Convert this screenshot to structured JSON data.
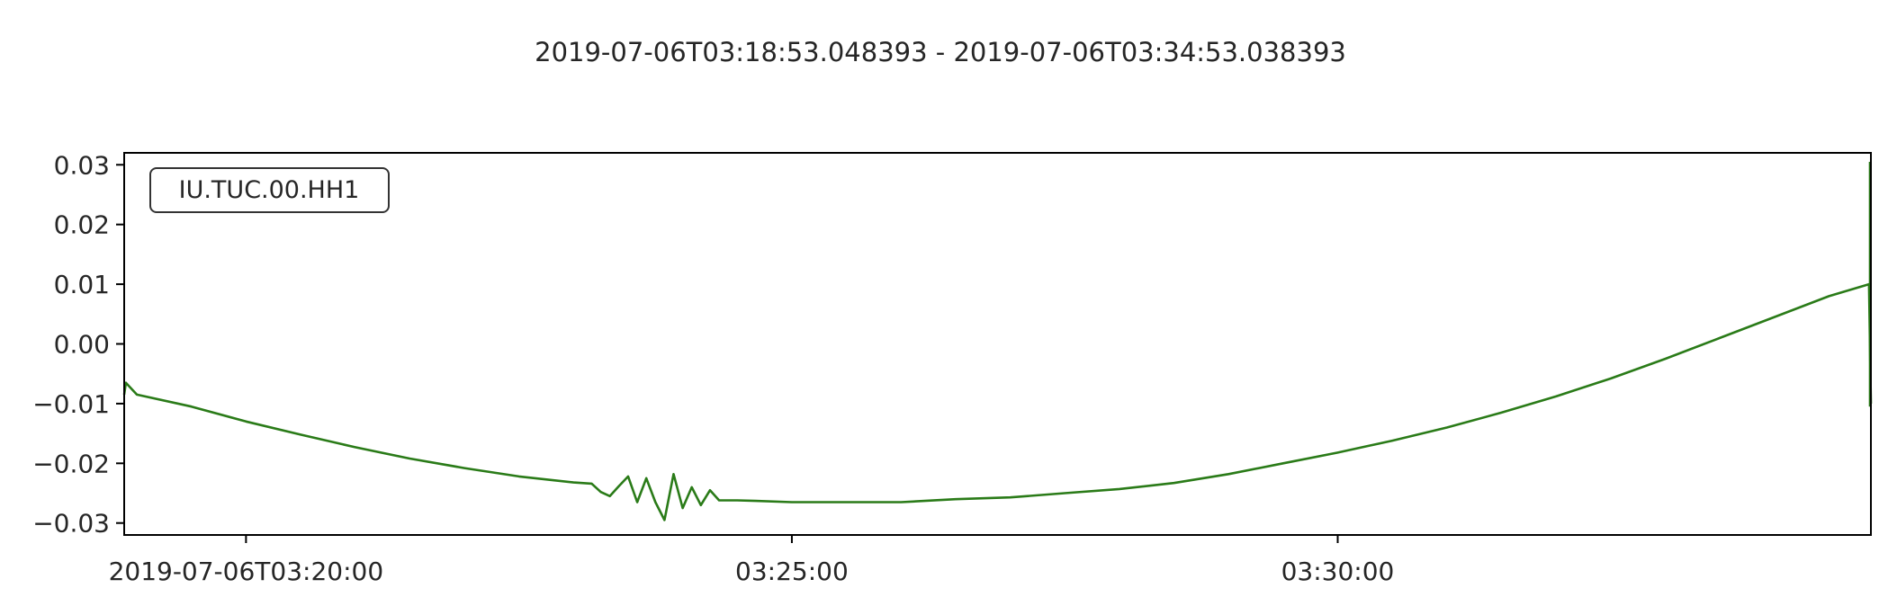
{
  "figure": {
    "title": "2019-07-06T03:18:53.048393  -  2019-07-06T03:34:53.038393"
  },
  "chart_data": {
    "type": "line",
    "title": "2019-07-06T03:18:53.048393  -  2019-07-06T03:34:53.038393",
    "xlabel": "",
    "ylabel": "",
    "x_unit": "time (UTC)",
    "xlim": [
      "2019-07-06T03:18:53.048393",
      "2019-07-06T03:34:53.038393"
    ],
    "ylim": [
      -0.032,
      0.032
    ],
    "x_ticks": [
      {
        "value": "2019-07-06T03:20:00",
        "label": "2019-07-06T03:20:00"
      },
      {
        "value": "2019-07-06T03:25:00",
        "label": "03:25:00"
      },
      {
        "value": "2019-07-06T03:30:00",
        "label": "03:30:00"
      }
    ],
    "y_ticks": [
      {
        "value": 0.03,
        "label": "0.03"
      },
      {
        "value": 0.02,
        "label": "0.02"
      },
      {
        "value": 0.01,
        "label": "0.01"
      },
      {
        "value": 0.0,
        "label": "0.00"
      },
      {
        "value": -0.01,
        "label": "−0.01"
      },
      {
        "value": -0.02,
        "label": "−0.02"
      },
      {
        "value": -0.03,
        "label": "−0.03"
      }
    ],
    "grid": false,
    "legend": "none",
    "annotations": [
      {
        "text": "IU.TUC.00.HH1",
        "position": "top-left",
        "boxed": true
      }
    ],
    "series": [
      {
        "color": "#2a7b18",
        "x": [
          "2019-07-06T03:18:53.048",
          "2019-07-06T03:18:54",
          "2019-07-06T03:19:00",
          "2019-07-06T03:19:30",
          "2019-07-06T03:20:00",
          "2019-07-06T03:20:30",
          "2019-07-06T03:21:00",
          "2019-07-06T03:21:30",
          "2019-07-06T03:22:00",
          "2019-07-06T03:22:30",
          "2019-07-06T03:23:00",
          "2019-07-06T03:23:10",
          "2019-07-06T03:23:15",
          "2019-07-06T03:23:20",
          "2019-07-06T03:23:25",
          "2019-07-06T03:23:30",
          "2019-07-06T03:23:35",
          "2019-07-06T03:23:40",
          "2019-07-06T03:23:45",
          "2019-07-06T03:23:50",
          "2019-07-06T03:23:55",
          "2019-07-06T03:24:00",
          "2019-07-06T03:24:05",
          "2019-07-06T03:24:10",
          "2019-07-06T03:24:15",
          "2019-07-06T03:24:20",
          "2019-07-06T03:24:30",
          "2019-07-06T03:24:40",
          "2019-07-06T03:25:00",
          "2019-07-06T03:25:30",
          "2019-07-06T03:26:00",
          "2019-07-06T03:26:30",
          "2019-07-06T03:27:00",
          "2019-07-06T03:27:30",
          "2019-07-06T03:28:00",
          "2019-07-06T03:28:30",
          "2019-07-06T03:29:00",
          "2019-07-06T03:29:30",
          "2019-07-06T03:30:00",
          "2019-07-06T03:30:30",
          "2019-07-06T03:31:00",
          "2019-07-06T03:31:30",
          "2019-07-06T03:32:00",
          "2019-07-06T03:32:30",
          "2019-07-06T03:33:00",
          "2019-07-06T03:33:30",
          "2019-07-06T03:34:00",
          "2019-07-06T03:34:30",
          "2019-07-06T03:34:52",
          "2019-07-06T03:34:53.038"
        ],
        "values": [
          -0.0085,
          -0.0065,
          -0.0085,
          -0.0105,
          -0.013,
          -0.0152,
          -0.0173,
          -0.0192,
          -0.0208,
          -0.0222,
          -0.0232,
          -0.0234,
          -0.0248,
          -0.0255,
          -0.0238,
          -0.0222,
          -0.0265,
          -0.0225,
          -0.0265,
          -0.0295,
          -0.0218,
          -0.0275,
          -0.024,
          -0.027,
          -0.0245,
          -0.0262,
          -0.0262,
          -0.0263,
          -0.0265,
          -0.0265,
          -0.0265,
          -0.026,
          -0.0257,
          -0.025,
          -0.0243,
          -0.0233,
          -0.0218,
          -0.02,
          -0.0182,
          -0.0162,
          -0.014,
          -0.0115,
          -0.0088,
          -0.0058,
          -0.0025,
          0.001,
          0.0045,
          0.008,
          0.01,
          -0.01
        ]
      }
    ]
  }
}
